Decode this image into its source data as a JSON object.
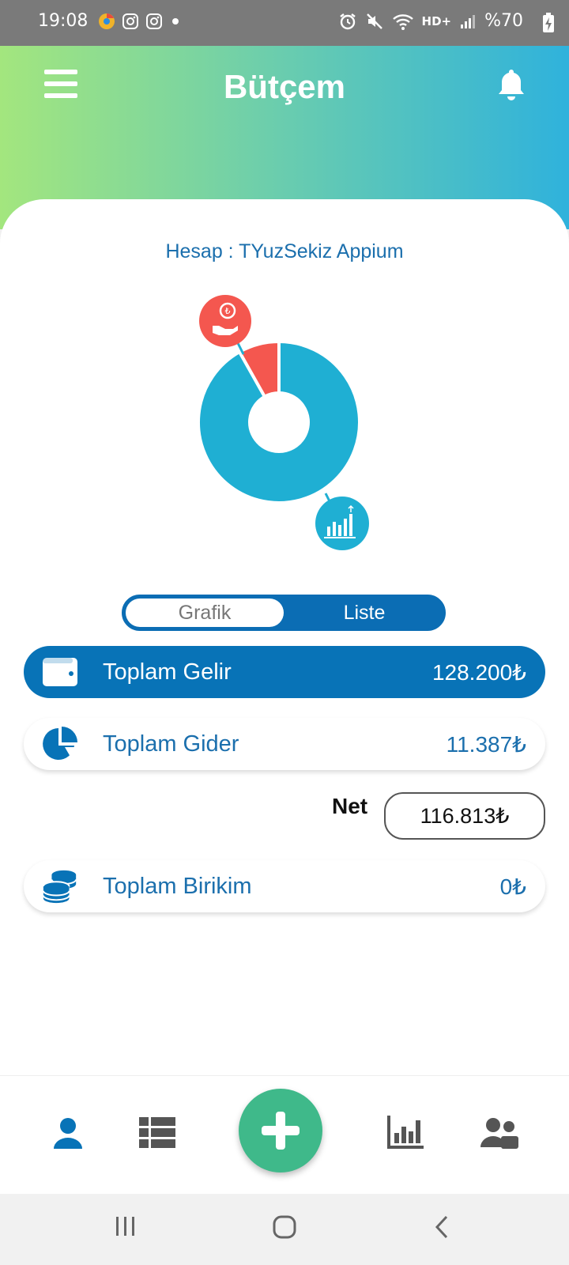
{
  "status_bar": {
    "time": "19:08",
    "network_label": "HD+",
    "battery_text": "%70"
  },
  "header": {
    "title": "Bütçem",
    "menu_icon": "hamburger-menu-icon",
    "bell_icon": "bell-icon"
  },
  "account": {
    "label": "Hesap : TYuzSekiz Appium"
  },
  "chart_data": {
    "type": "pie",
    "categories": [
      "Gelir",
      "Gider"
    ],
    "values": [
      128200,
      11387
    ],
    "colors": [
      "#1fafd3",
      "#f4574f"
    ]
  },
  "toggle": {
    "left_label": "Grafik",
    "right_label": "Liste",
    "selected": "Liste"
  },
  "summary": {
    "income": {
      "label": "Toplam Gelir",
      "value": "128.200₺",
      "icon": "wallet-icon"
    },
    "expense": {
      "label": "Toplam Gider",
      "value": "11.387₺",
      "icon": "pie-chart-icon"
    },
    "net": {
      "label": "Net",
      "value": "116.813₺"
    },
    "savings": {
      "label": "Toplam Birikim",
      "value": "0₺",
      "icon": "coins-icon"
    }
  },
  "colors": {
    "primary_blue": "#0873b7",
    "text_blue": "#1b6fad",
    "fab_green": "#3fb98a",
    "income_color": "#1fafd3",
    "expense_color": "#f4574f"
  },
  "bottom_nav": {
    "items": [
      "user-icon",
      "list-icon",
      "add-icon",
      "bar-chart-icon",
      "users-icon"
    ]
  }
}
